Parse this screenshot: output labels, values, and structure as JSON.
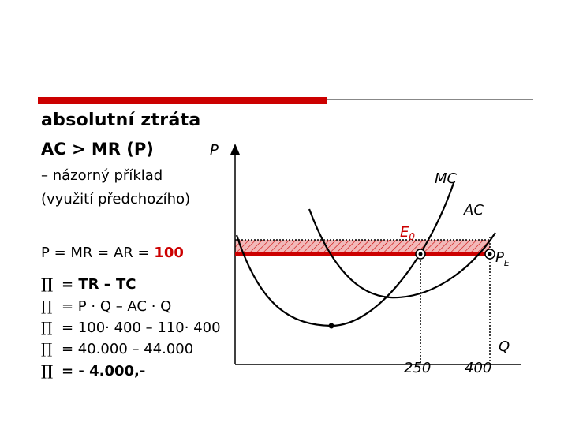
{
  "heading": {
    "title": "absolutní ztráta",
    "condition": "AC > MR (P)",
    "subtitle_line1": "– názorný příklad",
    "subtitle_line2": "(využití předchozího)"
  },
  "price_line": {
    "prefix": "P = MR = AR = ",
    "value": "100"
  },
  "profit_equations": [
    {
      "symbol": "∏",
      "text": "= TR – TC",
      "bold": true
    },
    {
      "symbol": "∏",
      "text": "= P · Q – AC · Q",
      "bold": false
    },
    {
      "symbol": "∏",
      "text": "= 100· 400 – 110· 400",
      "bold": false
    },
    {
      "symbol": "∏",
      "text": "= 40.000 – 44.000",
      "bold": false
    },
    {
      "symbol": "∏",
      "text": "= - 4.000,-",
      "bold": true
    }
  ],
  "diagram": {
    "y_axis_label": "P",
    "x_axis_label": "Q",
    "mc_label": "MC",
    "ac_label": "AC",
    "e0_label": "E",
    "e0_subscript": "0",
    "pe_label": "P",
    "pe_subscript": "E",
    "q_tick_1": "250",
    "q_tick_2": "400",
    "colors": {
      "accent_red": "#cc0000",
      "loss_fill": "#f2b8b8",
      "curve": "#000000"
    }
  }
}
